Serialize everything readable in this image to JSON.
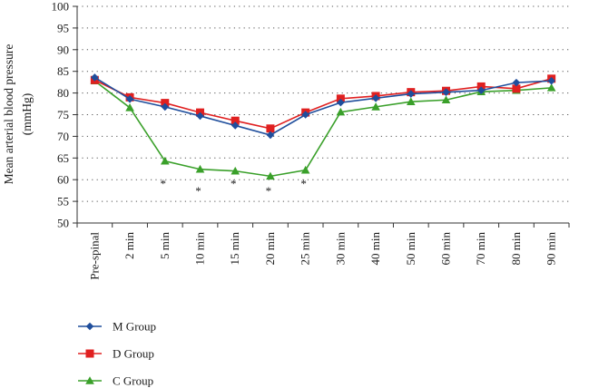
{
  "chart_data": {
    "type": "line",
    "ylabel_line1": "Mean arterial blood pressure",
    "ylabel_line2": "(mmHg)",
    "ylim": [
      50,
      100
    ],
    "ytick_step": 5,
    "yticks": [
      "50",
      "55",
      "60",
      "65",
      "70",
      "75",
      "80",
      "85",
      "90",
      "95",
      "100"
    ],
    "grid": "horizontal-dotted",
    "legend_position": "bottom-left",
    "categories": [
      "Pre-spinal",
      "2 min",
      "5 min",
      "10 min",
      "15 min",
      "20 min",
      "25 min",
      "30 min",
      "40 min",
      "50 min",
      "60 min",
      "70 min",
      "80 min",
      "90 min"
    ],
    "series": [
      {
        "name": "M Group",
        "color": "#1f4e9c",
        "marker": "diamond",
        "values": [
          83.6,
          78.6,
          76.8,
          74.7,
          72.5,
          70.3,
          75.0,
          77.8,
          78.8,
          79.8,
          80.2,
          80.6,
          82.4,
          82.8
        ]
      },
      {
        "name": "D Group",
        "color": "#e02020",
        "marker": "square",
        "values": [
          83.0,
          79.0,
          77.7,
          75.5,
          73.6,
          71.8,
          75.5,
          78.7,
          79.3,
          80.2,
          80.5,
          81.5,
          81.0,
          83.3
        ]
      },
      {
        "name": "C Group",
        "color": "#3aa02a",
        "marker": "triangle",
        "values": [
          82.8,
          76.6,
          64.3,
          62.4,
          62.0,
          60.8,
          62.2,
          75.6,
          76.8,
          78.0,
          78.4,
          80.3,
          80.6,
          81.2
        ]
      }
    ],
    "annotations": [
      {
        "category": "5 min",
        "text": "*"
      },
      {
        "category": "10 min",
        "text": "*"
      },
      {
        "category": "15 min",
        "text": "*"
      },
      {
        "category": "20 min",
        "text": "*"
      },
      {
        "category": "25 min",
        "text": "*"
      }
    ]
  }
}
